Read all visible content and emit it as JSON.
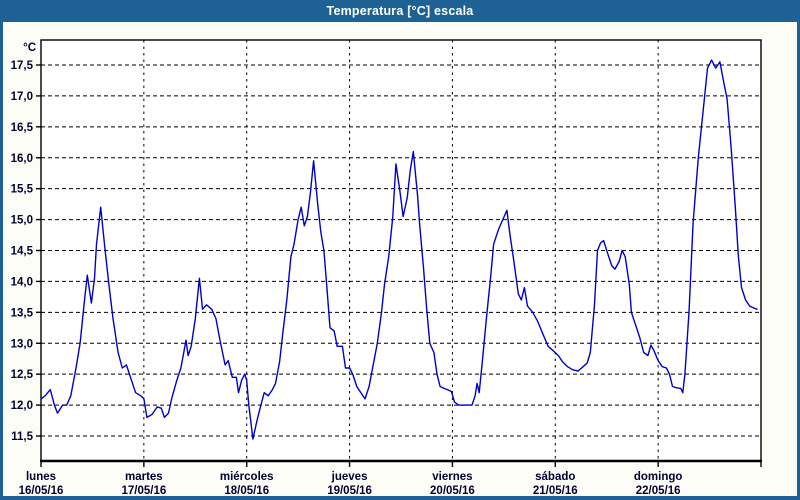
{
  "window": {
    "title": "Temperatura [°C] escala"
  },
  "colors": {
    "titlebar_bg": "#1E6295",
    "titlebar_text": "#FFFFFF",
    "frame": "#1E6295",
    "window_bg": "#FCFDF6",
    "line": "#0000CC",
    "grid": "#000000",
    "plot_border": "#000000",
    "axis_text": "#000033"
  },
  "chart_data": {
    "type": "line",
    "title": "Temperatura [°C] escala",
    "legend": "none",
    "grid": "dashed",
    "y_axis": {
      "unit": "°C",
      "min": 11.5,
      "max": 17.5,
      "step": 0.5,
      "tick_labels": [
        "17,5",
        "17,0",
        "16,5",
        "16,0",
        "15,5",
        "15,0",
        "14,5",
        "14,0",
        "13,5",
        "13,0",
        "12,5",
        "12,0",
        "11,5"
      ]
    },
    "x_axis": {
      "days": [
        {
          "name": "lunes",
          "date": "16/05/16"
        },
        {
          "name": "martes",
          "date": "17/05/16"
        },
        {
          "name": "miércoles",
          "date": "18/05/16"
        },
        {
          "name": "jueves",
          "date": "19/05/16"
        },
        {
          "name": "viernes",
          "date": "20/05/16"
        },
        {
          "name": "sábado",
          "date": "21/05/16"
        },
        {
          "name": "domingo",
          "date": "22/05/16"
        }
      ]
    },
    "series": [
      {
        "name": "Temperatura",
        "color": "#0000CC",
        "points_days_temp": [
          [
            0.0,
            12.1
          ],
          [
            0.04,
            12.15
          ],
          [
            0.09,
            12.25
          ],
          [
            0.13,
            12.0
          ],
          [
            0.16,
            11.87
          ],
          [
            0.21,
            12.0
          ],
          [
            0.25,
            12.0
          ],
          [
            0.29,
            12.15
          ],
          [
            0.34,
            12.6
          ],
          [
            0.38,
            13.0
          ],
          [
            0.42,
            13.65
          ],
          [
            0.45,
            14.1
          ],
          [
            0.49,
            13.65
          ],
          [
            0.52,
            14.05
          ],
          [
            0.54,
            14.6
          ],
          [
            0.58,
            15.2
          ],
          [
            0.62,
            14.55
          ],
          [
            0.66,
            13.95
          ],
          [
            0.7,
            13.4
          ],
          [
            0.75,
            12.85
          ],
          [
            0.79,
            12.6
          ],
          [
            0.83,
            12.65
          ],
          [
            0.87,
            12.45
          ],
          [
            0.92,
            12.2
          ],
          [
            0.97,
            12.15
          ],
          [
            1.0,
            12.1
          ],
          [
            1.03,
            11.8
          ],
          [
            1.08,
            11.85
          ],
          [
            1.13,
            11.97
          ],
          [
            1.17,
            11.95
          ],
          [
            1.2,
            11.8
          ],
          [
            1.24,
            11.87
          ],
          [
            1.27,
            12.1
          ],
          [
            1.32,
            12.4
          ],
          [
            1.36,
            12.6
          ],
          [
            1.41,
            13.05
          ],
          [
            1.43,
            12.8
          ],
          [
            1.46,
            12.95
          ],
          [
            1.5,
            13.4
          ],
          [
            1.54,
            14.05
          ],
          [
            1.57,
            13.55
          ],
          [
            1.61,
            13.62
          ],
          [
            1.66,
            13.55
          ],
          [
            1.7,
            13.4
          ],
          [
            1.74,
            13.05
          ],
          [
            1.79,
            12.65
          ],
          [
            1.82,
            12.72
          ],
          [
            1.86,
            12.45
          ],
          [
            1.9,
            12.45
          ],
          [
            1.92,
            12.2
          ],
          [
            1.95,
            12.4
          ],
          [
            1.98,
            12.5
          ],
          [
            2.0,
            12.4
          ],
          [
            2.02,
            12.0
          ],
          [
            2.06,
            11.45
          ],
          [
            2.1,
            11.75
          ],
          [
            2.13,
            11.95
          ],
          [
            2.17,
            12.2
          ],
          [
            2.21,
            12.15
          ],
          [
            2.25,
            12.25
          ],
          [
            2.28,
            12.35
          ],
          [
            2.32,
            12.7
          ],
          [
            2.35,
            13.15
          ],
          [
            2.39,
            13.7
          ],
          [
            2.43,
            14.4
          ],
          [
            2.46,
            14.6
          ],
          [
            2.5,
            15.0
          ],
          [
            2.53,
            15.2
          ],
          [
            2.56,
            14.9
          ],
          [
            2.59,
            15.05
          ],
          [
            2.62,
            15.45
          ],
          [
            2.65,
            15.95
          ],
          [
            2.69,
            15.25
          ],
          [
            2.72,
            14.8
          ],
          [
            2.75,
            14.5
          ],
          [
            2.78,
            13.9
          ],
          [
            2.81,
            13.25
          ],
          [
            2.85,
            13.2
          ],
          [
            2.88,
            12.95
          ],
          [
            2.93,
            12.95
          ],
          [
            2.96,
            12.6
          ],
          [
            3.0,
            12.6
          ],
          [
            3.03,
            12.5
          ],
          [
            3.07,
            12.3
          ],
          [
            3.11,
            12.2
          ],
          [
            3.15,
            12.1
          ],
          [
            3.19,
            12.3
          ],
          [
            3.23,
            12.65
          ],
          [
            3.27,
            13.0
          ],
          [
            3.31,
            13.5
          ],
          [
            3.34,
            13.95
          ],
          [
            3.38,
            14.4
          ],
          [
            3.42,
            15.05
          ],
          [
            3.45,
            15.9
          ],
          [
            3.49,
            15.45
          ],
          [
            3.52,
            15.05
          ],
          [
            3.56,
            15.35
          ],
          [
            3.59,
            15.8
          ],
          [
            3.62,
            16.1
          ],
          [
            3.66,
            15.4
          ],
          [
            3.68,
            14.95
          ],
          [
            3.72,
            14.2
          ],
          [
            3.75,
            13.55
          ],
          [
            3.78,
            13.0
          ],
          [
            3.82,
            12.85
          ],
          [
            3.85,
            12.5
          ],
          [
            3.88,
            12.3
          ],
          [
            3.92,
            12.27
          ],
          [
            3.95,
            12.25
          ],
          [
            3.99,
            12.22
          ],
          [
            4.02,
            12.05
          ],
          [
            4.06,
            12.0
          ],
          [
            4.1,
            12.0
          ],
          [
            4.15,
            12.0
          ],
          [
            4.19,
            12.0
          ],
          [
            4.22,
            12.15
          ],
          [
            4.24,
            12.35
          ],
          [
            4.26,
            12.2
          ],
          [
            4.29,
            12.7
          ],
          [
            4.33,
            13.4
          ],
          [
            4.37,
            14.05
          ],
          [
            4.4,
            14.6
          ],
          [
            4.45,
            14.85
          ],
          [
            4.49,
            15.0
          ],
          [
            4.53,
            15.15
          ],
          [
            4.56,
            14.75
          ],
          [
            4.6,
            14.3
          ],
          [
            4.64,
            13.8
          ],
          [
            4.67,
            13.7
          ],
          [
            4.7,
            13.9
          ],
          [
            4.73,
            13.6
          ],
          [
            4.78,
            13.5
          ],
          [
            4.83,
            13.35
          ],
          [
            4.88,
            13.15
          ],
          [
            4.93,
            12.95
          ],
          [
            4.98,
            12.88
          ],
          [
            5.03,
            12.8
          ],
          [
            5.07,
            12.7
          ],
          [
            5.12,
            12.62
          ],
          [
            5.17,
            12.57
          ],
          [
            5.22,
            12.55
          ],
          [
            5.27,
            12.62
          ],
          [
            5.31,
            12.68
          ],
          [
            5.34,
            12.85
          ],
          [
            5.38,
            13.6
          ],
          [
            5.41,
            14.5
          ],
          [
            5.44,
            14.62
          ],
          [
            5.47,
            14.66
          ],
          [
            5.51,
            14.45
          ],
          [
            5.55,
            14.25
          ],
          [
            5.58,
            14.2
          ],
          [
            5.62,
            14.32
          ],
          [
            5.65,
            14.5
          ],
          [
            5.68,
            14.4
          ],
          [
            5.72,
            13.95
          ],
          [
            5.74,
            13.5
          ],
          [
            5.78,
            13.3
          ],
          [
            5.82,
            13.1
          ],
          [
            5.86,
            12.85
          ],
          [
            5.9,
            12.8
          ],
          [
            5.93,
            12.97
          ],
          [
            5.96,
            12.88
          ],
          [
            6.0,
            12.72
          ],
          [
            6.04,
            12.62
          ],
          [
            6.08,
            12.6
          ],
          [
            6.11,
            12.5
          ],
          [
            6.14,
            12.3
          ],
          [
            6.18,
            12.28
          ],
          [
            6.22,
            12.27
          ],
          [
            6.24,
            12.2
          ],
          [
            6.26,
            12.5
          ],
          [
            6.3,
            13.5
          ],
          [
            6.34,
            14.95
          ],
          [
            6.39,
            16.0
          ],
          [
            6.44,
            16.8
          ],
          [
            6.48,
            17.45
          ],
          [
            6.52,
            17.58
          ],
          [
            6.56,
            17.45
          ],
          [
            6.6,
            17.55
          ],
          [
            6.64,
            17.2
          ],
          [
            6.67,
            16.95
          ],
          [
            6.71,
            16.15
          ],
          [
            6.75,
            15.2
          ],
          [
            6.78,
            14.4
          ],
          [
            6.81,
            13.9
          ],
          [
            6.85,
            13.7
          ],
          [
            6.89,
            13.6
          ],
          [
            6.93,
            13.57
          ],
          [
            6.96,
            13.55
          ]
        ]
      }
    ]
  }
}
